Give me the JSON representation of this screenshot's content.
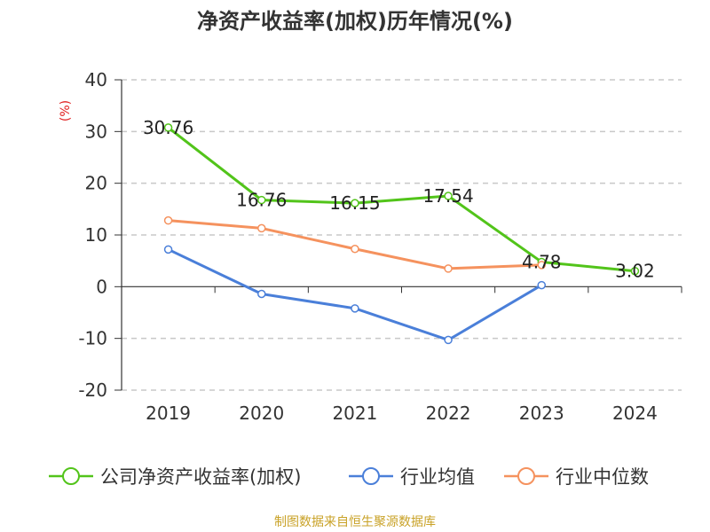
{
  "chart_data": {
    "type": "line",
    "title": "净资产收益率(加权)历年情况(%)",
    "ylabel": "(%)",
    "xlabel": "",
    "categories": [
      "2019",
      "2020",
      "2021",
      "2022",
      "2023",
      "2024"
    ],
    "ylim": [
      -20,
      40
    ],
    "yticks": [
      40,
      30,
      20,
      10,
      0,
      -10,
      -20
    ],
    "grid": true,
    "legend_position": "bottom",
    "series": [
      {
        "name": "公司净资产收益率(加权)",
        "color": "#52c41a",
        "values": [
          30.76,
          16.76,
          16.15,
          17.54,
          4.78,
          3.02
        ],
        "labels": [
          "30.76",
          "16.76",
          "16.15",
          "17.54",
          "4.78",
          "3.02"
        ]
      },
      {
        "name": "行业均值",
        "color": "#4a7fd9",
        "values": [
          7.2,
          -1.4,
          -4.2,
          -10.3,
          0.3,
          null
        ]
      },
      {
        "name": "行业中位数",
        "color": "#f5925e",
        "values": [
          12.8,
          11.3,
          7.3,
          3.5,
          4.2,
          null
        ]
      }
    ]
  },
  "footer": {
    "source": "制图数据来自恒生聚源数据库"
  }
}
